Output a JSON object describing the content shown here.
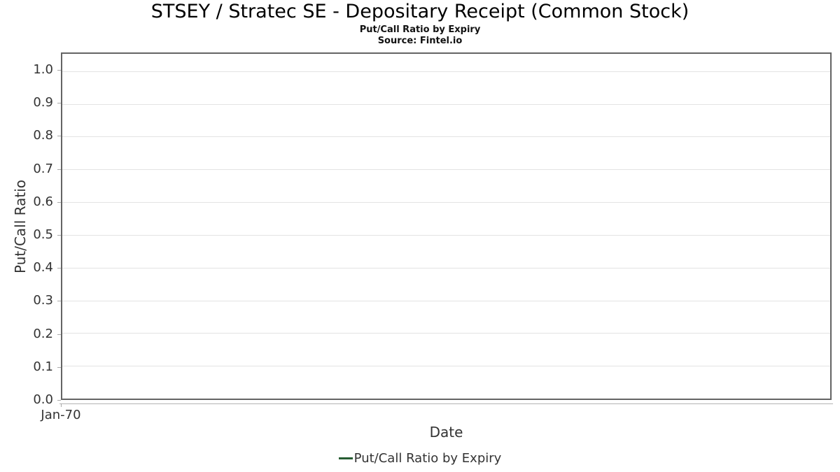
{
  "header": {
    "title": "STSEY / Stratec SE - Depositary Receipt (Common Stock)",
    "subtitle": "Put/Call Ratio by Expiry",
    "source": "Source: Fintel.io"
  },
  "chart_data": {
    "type": "line",
    "title": "STSEY / Stratec SE - Depositary Receipt (Common Stock)",
    "subtitle": "Put/Call Ratio by Expiry",
    "source": "Source: Fintel.io",
    "xlabel": "Date",
    "ylabel": "Put/Call Ratio",
    "ylim": [
      0,
      1.053
    ],
    "grid": "horizontal-only",
    "plot_background": "#ffffff",
    "yticks": [
      {
        "label": "0.0",
        "value": 0.0
      },
      {
        "label": "0.1",
        "value": 0.1
      },
      {
        "label": "0.2",
        "value": 0.2
      },
      {
        "label": "0.3",
        "value": 0.3
      },
      {
        "label": "0.4",
        "value": 0.4
      },
      {
        "label": "0.5",
        "value": 0.5
      },
      {
        "label": "0.6",
        "value": 0.6
      },
      {
        "label": "0.7",
        "value": 0.7
      },
      {
        "label": "0.8",
        "value": 0.8
      },
      {
        "label": "0.9",
        "value": 0.9
      },
      {
        "label": "1.0",
        "value": 1.0
      }
    ],
    "xticks": [
      {
        "label": "Jan-70",
        "pos": 0
      }
    ],
    "legend_position": "bottom-center",
    "series": [
      {
        "name": "Put/Call Ratio by Expiry",
        "color": "#275d33",
        "x": [],
        "y": []
      }
    ]
  },
  "colors": {
    "title_text": "#000000",
    "subtitle_text": "#111111",
    "axis_text": "#333333",
    "plot_border": "#646464",
    "axis_line": "#b3b3b3",
    "tick_mark": "#aaaaaa",
    "gridline": "#e3e3e3",
    "series_green": "#275d33"
  }
}
